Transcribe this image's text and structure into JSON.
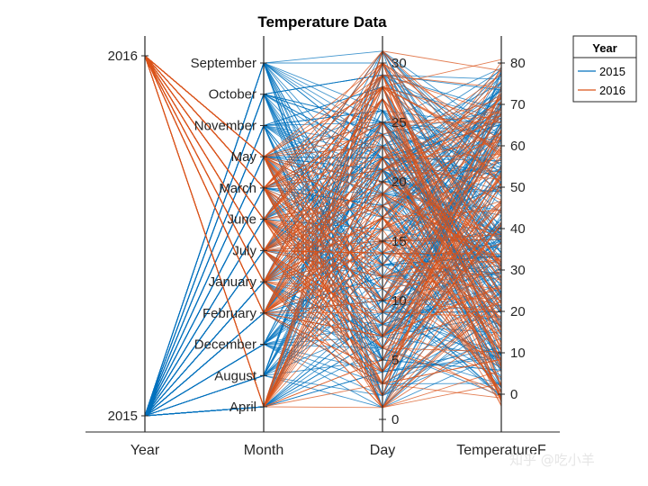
{
  "chart_data": {
    "type": "parallel-coordinates",
    "title": "Temperature Data",
    "axes": [
      {
        "name": "Year",
        "kind": "categorical",
        "categories": [
          "2015",
          "2016"
        ],
        "tick_labels": [
          "2015",
          "2016"
        ]
      },
      {
        "name": "Month",
        "kind": "categorical",
        "categories": [
          "April",
          "August",
          "December",
          "February",
          "January",
          "July",
          "June",
          "March",
          "May",
          "November",
          "October",
          "September"
        ],
        "tick_labels": [
          "April",
          "August",
          "December",
          "February",
          "January",
          "July",
          "June",
          "March",
          "May",
          "November",
          "October",
          "September"
        ]
      },
      {
        "name": "Day",
        "kind": "numeric",
        "range": [
          0,
          31
        ],
        "ticks": [
          0,
          5,
          10,
          15,
          20,
          25,
          30
        ]
      },
      {
        "name": "TemperatureF",
        "kind": "numeric",
        "range": [
          -3,
          81
        ],
        "ticks": [
          0,
          10,
          20,
          30,
          40,
          50,
          60,
          70,
          80
        ]
      }
    ],
    "group_by": "Year",
    "series": [
      {
        "name": "2015",
        "color": "#0072BD",
        "months_present": [
          "April",
          "August",
          "December",
          "February",
          "January",
          "July",
          "June",
          "March",
          "May",
          "November",
          "October",
          "September"
        ],
        "day_range": [
          1,
          31
        ],
        "temperature_range": [
          -1,
          79
        ]
      },
      {
        "name": "2016",
        "color": "#D95319",
        "months_present": [
          "April",
          "February",
          "January",
          "July",
          "June",
          "March",
          "May"
        ],
        "day_range": [
          1,
          31
        ],
        "temperature_range": [
          -3,
          81
        ]
      }
    ],
    "legend": {
      "title": "Year",
      "position": "top-right",
      "entries": [
        "2015",
        "2016"
      ]
    },
    "grid": false
  },
  "watermark": "知乎 @吃小羊"
}
